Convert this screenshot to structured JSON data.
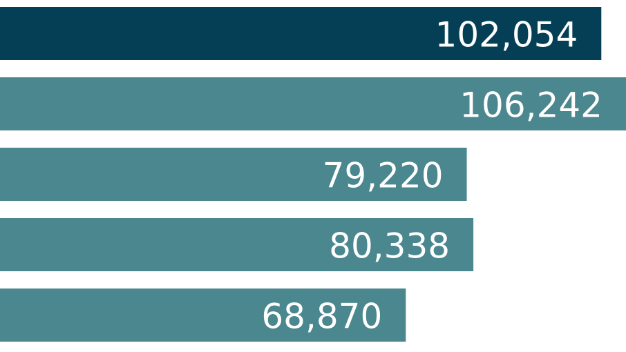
{
  "chart_data": {
    "type": "barh",
    "categories": [
      null,
      null,
      null,
      null,
      null
    ],
    "values": [
      102054,
      106242,
      79220,
      80338,
      68870
    ],
    "value_labels": [
      "102,054",
      "106,242",
      "79,220",
      "80,338",
      "68,870"
    ],
    "colors": [
      "#053f56",
      "#4a878e",
      "#4a878e",
      "#4a878e",
      "#4a878e"
    ]
  }
}
